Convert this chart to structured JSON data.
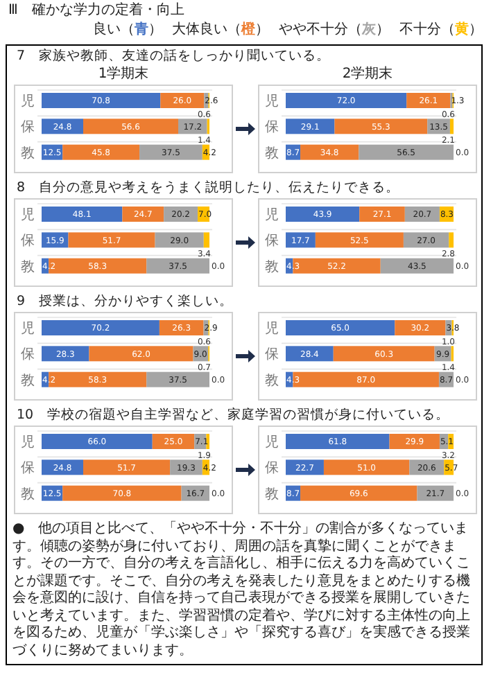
{
  "chart_data": [
    {
      "type": "bar",
      "orientation": "horizontal",
      "stacked": true,
      "tick_labels": "y",
      "xlim": [
        0,
        100
      ],
      "legend": "top right",
      "title": "7　家族や教師、友達の話をしっかり聞いている。",
      "subtitle": "1学期末",
      "annotations": [
        "Ⅲ　確かな学力の定着・向上"
      ],
      "categories": [
        "児",
        "保",
        "教"
      ],
      "series": [
        {
          "name": "良い（青）",
          "color": "#4472c4",
          "values": [
            70.8,
            24.8,
            12.5
          ],
          "value_labels": [
            "70.8",
            "24.8",
            "12.5"
          ]
        },
        {
          "name": "大体良い（橙）",
          "color": "#ed7d31",
          "values": [
            26.0,
            56.6,
            45.8
          ],
          "value_labels": [
            "26.0",
            "56.6",
            "45.8"
          ]
        },
        {
          "name": "やや不十分（灰）",
          "color": "#a5a5a5",
          "values": [
            2.6,
            17.2,
            37.5
          ],
          "value_labels": [
            "2.6",
            "17.2",
            "37.5"
          ]
        },
        {
          "name": "不十分（黄）",
          "color": "#ffc000",
          "values": [
            0.6,
            1.4,
            4.2
          ],
          "value_labels": [
            "0.6",
            "1.4",
            "4.2"
          ]
        }
      ]
    },
    {
      "type": "bar",
      "orientation": "horizontal",
      "stacked": true,
      "tick_labels": "y",
      "xlim": [
        0,
        100
      ],
      "subtitle": "2学期末",
      "categories": [
        "児",
        "保",
        "教"
      ],
      "series": [
        {
          "color": "#4472c4",
          "values": [
            72.0,
            29.1,
            8.7
          ],
          "value_labels": [
            "72.0",
            "29.1",
            "8.7"
          ]
        },
        {
          "color": "#ed7d31",
          "values": [
            26.1,
            55.3,
            34.8
          ],
          "value_labels": [
            "26.1",
            "55.3",
            "34.8"
          ]
        },
        {
          "color": "#a5a5a5",
          "values": [
            1.3,
            13.5,
            56.5
          ],
          "value_labels": [
            "1.3",
            "13.5",
            "56.5"
          ]
        },
        {
          "color": "#ffc000",
          "values": [
            0.6,
            2.1,
            0.0
          ],
          "value_labels": [
            "0.6",
            "2.1",
            "0.0"
          ]
        }
      ]
    },
    {
      "type": "bar",
      "orientation": "horizontal",
      "stacked": true,
      "tick_labels": "y",
      "xlim": [
        0,
        100
      ],
      "title": "8　自分の意見や考えをうまく説明したり、伝えたりできる。",
      "categories": [
        "児",
        "保",
        "教"
      ],
      "series": [
        {
          "color": "#4472c4",
          "values": [
            48.1,
            15.9,
            4.2
          ],
          "value_labels": [
            "48.1",
            "15.9",
            "4.2"
          ]
        },
        {
          "color": "#ed7d31",
          "values": [
            24.7,
            51.7,
            58.3
          ],
          "value_labels": [
            "24.7",
            "51.7",
            "58.3"
          ]
        },
        {
          "color": "#a5a5a5",
          "values": [
            20.2,
            29.0,
            37.5
          ],
          "value_labels": [
            "20.2",
            "29.0",
            "37.5"
          ]
        },
        {
          "color": "#ffc000",
          "values": [
            7.0,
            3.4,
            0.0
          ],
          "value_labels": [
            "7.0",
            "3.4",
            "0.0"
          ]
        }
      ]
    },
    {
      "type": "bar",
      "orientation": "horizontal",
      "stacked": true,
      "tick_labels": "y",
      "xlim": [
        0,
        100
      ],
      "categories": [
        "児",
        "保",
        "教"
      ],
      "series": [
        {
          "color": "#4472c4",
          "values": [
            43.9,
            17.7,
            4.3
          ],
          "value_labels": [
            "43.9",
            "17.7",
            "4.3"
          ]
        },
        {
          "color": "#ed7d31",
          "values": [
            27.1,
            52.5,
            52.2
          ],
          "value_labels": [
            "27.1",
            "52.5",
            "52.2"
          ]
        },
        {
          "color": "#a5a5a5",
          "values": [
            20.7,
            27.0,
            43.5
          ],
          "value_labels": [
            "20.7",
            "27.0",
            "43.5"
          ]
        },
        {
          "color": "#ffc000",
          "values": [
            8.3,
            2.8,
            0.0
          ],
          "value_labels": [
            "8.3",
            "2.8",
            "0.0"
          ]
        }
      ]
    },
    {
      "type": "bar",
      "orientation": "horizontal",
      "stacked": true,
      "tick_labels": "y",
      "xlim": [
        0,
        100
      ],
      "title": "9　授業は、分かりやすく楽しい。",
      "categories": [
        "児",
        "保",
        "教"
      ],
      "series": [
        {
          "color": "#4472c4",
          "values": [
            70.2,
            28.3,
            4.2
          ],
          "value_labels": [
            "70.2",
            "28.3",
            "4.2"
          ]
        },
        {
          "color": "#ed7d31",
          "values": [
            26.3,
            62.0,
            58.3
          ],
          "value_labels": [
            "26.3",
            "62.0",
            "58.3"
          ]
        },
        {
          "color": "#a5a5a5",
          "values": [
            2.9,
            9.0,
            37.5
          ],
          "value_labels": [
            "2.9",
            "9.0",
            "37.5"
          ]
        },
        {
          "color": "#ffc000",
          "values": [
            0.6,
            0.7,
            0.0
          ],
          "value_labels": [
            "0.6",
            "0.7",
            "0.0"
          ]
        }
      ]
    },
    {
      "type": "bar",
      "orientation": "horizontal",
      "stacked": true,
      "tick_labels": "y",
      "xlim": [
        0,
        100
      ],
      "categories": [
        "児",
        "保",
        "教"
      ],
      "series": [
        {
          "color": "#4472c4",
          "values": [
            65.0,
            28.4,
            4.3
          ],
          "value_labels": [
            "65.0",
            "28.4",
            "4.3"
          ]
        },
        {
          "color": "#ed7d31",
          "values": [
            30.2,
            60.3,
            87.0
          ],
          "value_labels": [
            "30.2",
            "60.3",
            "87.0"
          ]
        },
        {
          "color": "#a5a5a5",
          "values": [
            3.8,
            9.9,
            8.7
          ],
          "value_labels": [
            "3.8",
            "9.9",
            "8.7"
          ]
        },
        {
          "color": "#ffc000",
          "values": [
            1.0,
            1.4,
            0.0
          ],
          "value_labels": [
            "1.0",
            "1.4",
            "0.0"
          ]
        }
      ]
    },
    {
      "type": "bar",
      "orientation": "horizontal",
      "stacked": true,
      "tick_labels": "y",
      "xlim": [
        0,
        100
      ],
      "title": "10　学校の宿題や自主学習など、家庭学習の習慣が身に付いている。",
      "categories": [
        "児",
        "保",
        "教"
      ],
      "series": [
        {
          "color": "#4472c4",
          "values": [
            66.0,
            24.8,
            12.5
          ],
          "value_labels": [
            "66.0",
            "24.8",
            "12.5"
          ]
        },
        {
          "color": "#ed7d31",
          "values": [
            25.0,
            51.7,
            70.8
          ],
          "value_labels": [
            "25.0",
            "51.7",
            "70.8"
          ]
        },
        {
          "color": "#a5a5a5",
          "values": [
            7.1,
            19.3,
            16.7
          ],
          "value_labels": [
            "7.1",
            "19.3",
            "16.7"
          ]
        },
        {
          "color": "#ffc000",
          "values": [
            1.9,
            4.2,
            0.0
          ],
          "value_labels": [
            "1.9",
            "4.2",
            "0.0"
          ]
        }
      ]
    },
    {
      "type": "bar",
      "orientation": "horizontal",
      "stacked": true,
      "tick_labels": "y",
      "xlim": [
        0,
        100
      ],
      "categories": [
        "児",
        "保",
        "教"
      ],
      "annotations": [
        "●　他の項目と比べて、「やや不十分・不十分」の割合が多くなっています。傾聴の姿勢が身に付いており、周囲の話を真摯に聞くことができます。その一方で、自分の考えを言語化し、相手に伝える力を高めていくことが課題です。そこで、自分の考えを発表したり意見をまとめたりする機会を意図的に設け、自信を持って自己表現ができる授業を展開していきたいと考えています。また、学習習慣の定着や、学びに対する主体性の向上を図るため、児童が「学ぶ楽しさ」や「探究する喜び」を実感できる授業づくりに努めてまいります。"
      ],
      "series": [
        {
          "color": "#4472c4",
          "values": [
            61.8,
            22.7,
            8.7
          ],
          "value_labels": [
            "61.8",
            "22.7",
            "8.7"
          ]
        },
        {
          "color": "#ed7d31",
          "values": [
            29.9,
            51.0,
            69.6
          ],
          "value_labels": [
            "29.9",
            "51.0",
            "69.6"
          ]
        },
        {
          "color": "#a5a5a5",
          "values": [
            5.1,
            20.6,
            21.7
          ],
          "value_labels": [
            "5.1",
            "20.6",
            "21.7"
          ]
        },
        {
          "color": "#ffc000",
          "values": [
            3.2,
            5.7,
            0.0
          ],
          "value_labels": [
            "3.2",
            "5.7",
            "0.0"
          ]
        }
      ]
    }
  ]
}
